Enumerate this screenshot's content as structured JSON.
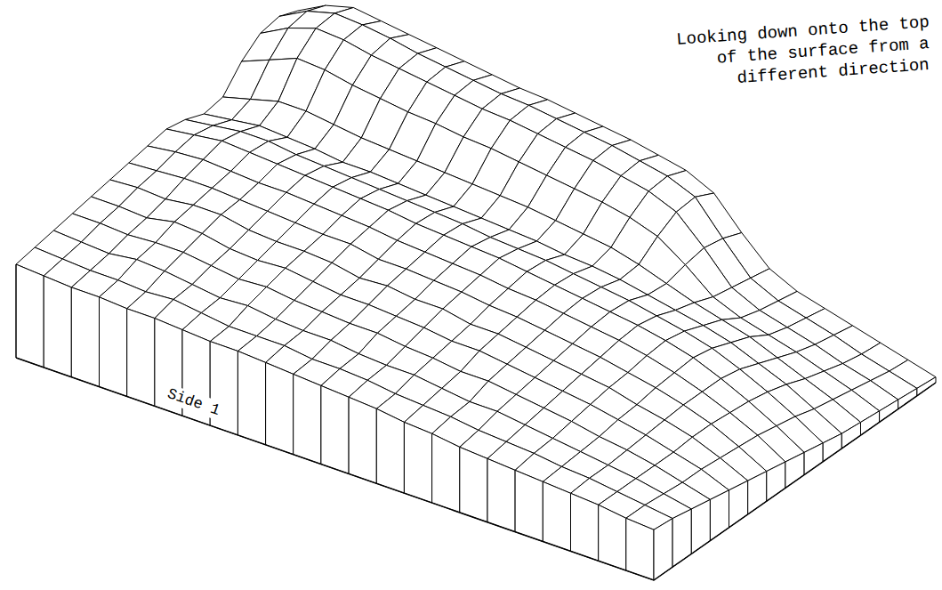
{
  "chart_data": {
    "type": "surface",
    "title": "Looking down onto the top of the surface from a different direction",
    "xlabel": "Side 1",
    "tick_labels": false,
    "z": [
      [
        50,
        49,
        48,
        48,
        47,
        47,
        46,
        45,
        45,
        44,
        43,
        42,
        41,
        40,
        38,
        37,
        35,
        34,
        33,
        32,
        31,
        30,
        28,
        27
      ],
      [
        52,
        51,
        50,
        50,
        49,
        50,
        48,
        46,
        46,
        46,
        44,
        44,
        43,
        41,
        40,
        39,
        37,
        36,
        35,
        33,
        32,
        30,
        28,
        26
      ],
      [
        54,
        53,
        52,
        54,
        53,
        51,
        49,
        50,
        48,
        47,
        47,
        45,
        44,
        44,
        42,
        40,
        40,
        38,
        36,
        34,
        32,
        30,
        27,
        24
      ],
      [
        56,
        56,
        55,
        56,
        56,
        54,
        52,
        53,
        51,
        50,
        49,
        49,
        47,
        46,
        44,
        44,
        42,
        40,
        38,
        35,
        33,
        30,
        26,
        22
      ],
      [
        58,
        58,
        57,
        60,
        59,
        56,
        55,
        56,
        54,
        52,
        52,
        51,
        50,
        48,
        48,
        46,
        44,
        42,
        40,
        37,
        34,
        30,
        26,
        20
      ],
      [
        60,
        61,
        60,
        62,
        62,
        59,
        58,
        58,
        57,
        54,
        55,
        53,
        53,
        50,
        50,
        48,
        46,
        44,
        42,
        38,
        35,
        31,
        25,
        18
      ],
      [
        62,
        63,
        64,
        64,
        63,
        62,
        61,
        60,
        60,
        57,
        57,
        56,
        55,
        53,
        52,
        50,
        48,
        46,
        43,
        40,
        36,
        31,
        24,
        16
      ],
      [
        64,
        66,
        67,
        66,
        65,
        65,
        64,
        63,
        62,
        60,
        59,
        58,
        57,
        55,
        54,
        52,
        50,
        48,
        45,
        41,
        36,
        30,
        23,
        14
      ],
      [
        66,
        68,
        70,
        69,
        68,
        67,
        66,
        65,
        64,
        62,
        61,
        60,
        59,
        57,
        55,
        53,
        51,
        49,
        46,
        42,
        36,
        29,
        21,
        12
      ],
      [
        64,
        66,
        68,
        68,
        66,
        65,
        64,
        63,
        62,
        61,
        60,
        58,
        57,
        56,
        54,
        52,
        50,
        47,
        44,
        40,
        34,
        27,
        19,
        10
      ],
      [
        60,
        62,
        64,
        63,
        62,
        60,
        60,
        59,
        58,
        57,
        56,
        55,
        54,
        52,
        51,
        49,
        46,
        43,
        40,
        36,
        30,
        24,
        16,
        8
      ],
      [
        62,
        66,
        70,
        70,
        68,
        66,
        65,
        64,
        63,
        62,
        61,
        60,
        58,
        56,
        54,
        50,
        45,
        40,
        36,
        32,
        26,
        20,
        14,
        7
      ],
      [
        74,
        80,
        86,
        85,
        82,
        80,
        78,
        77,
        75,
        74,
        72,
        70,
        68,
        66,
        63,
        58,
        48,
        36,
        30,
        26,
        22,
        17,
        12,
        6
      ],
      [
        82,
        90,
        95,
        94,
        91,
        89,
        87,
        85,
        83,
        82,
        80,
        78,
        76,
        73,
        70,
        64,
        50,
        34,
        27,
        23,
        19,
        14,
        10,
        5
      ],
      [
        84,
        92,
        96,
        95,
        93,
        90,
        88,
        86,
        84,
        83,
        81,
        79,
        77,
        74,
        71,
        65,
        48,
        32,
        25,
        21,
        17,
        12,
        8,
        4
      ],
      [
        80,
        88,
        92,
        90,
        88,
        86,
        84,
        82,
        80,
        79,
        77,
        75,
        73,
        70,
        67,
        60,
        44,
        30,
        23,
        19,
        15,
        11,
        7,
        3
      ]
    ]
  }
}
